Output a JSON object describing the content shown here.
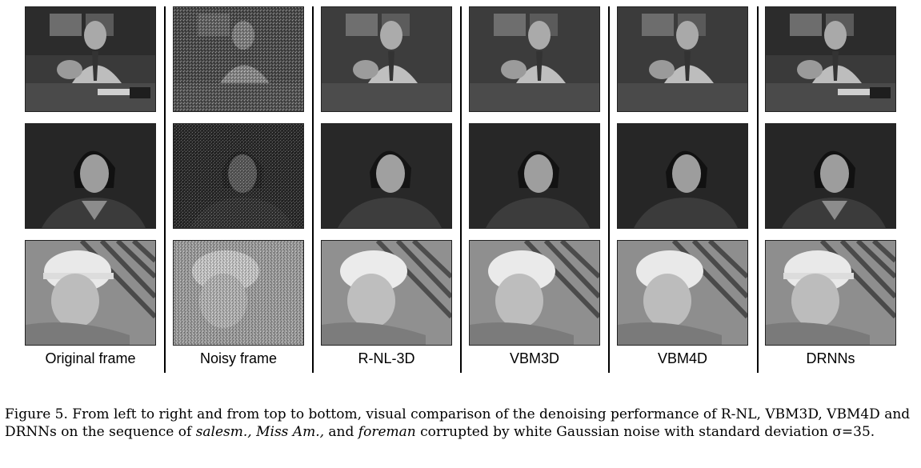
{
  "columns": [
    {
      "label": "Original frame",
      "variant": "clean"
    },
    {
      "label": "Noisy frame",
      "variant": "noisy"
    },
    {
      "label": "R-NL-3D",
      "variant": "smooth"
    },
    {
      "label": "VBM3D",
      "variant": "smooth"
    },
    {
      "label": "VBM4D",
      "variant": "smooth"
    },
    {
      "label": "DRNNs",
      "variant": "clean"
    }
  ],
  "rows": [
    "salesm.",
    "Miss Am.",
    "foreman"
  ],
  "caption": {
    "prefix": "Figure 5.   From left to right and from top to bottom, visual comparison of the denoising performance of R-NL, VBM3D, VBM4D and DRNNs on the sequence of ",
    "seq1": "salesm.,",
    "seq2": "Miss Am.,",
    "mid": " and ",
    "seq3": "foreman",
    "suffix": " corrupted by white Gaussian noise with standard deviation σ=35."
  }
}
